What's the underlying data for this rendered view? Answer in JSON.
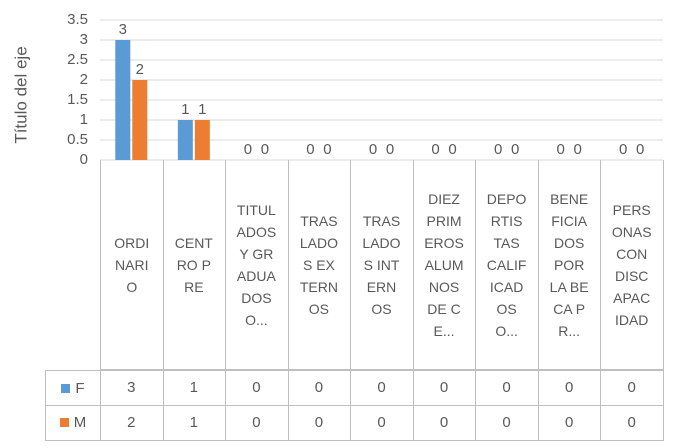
{
  "chart_data": {
    "type": "bar",
    "y_axis_label": "Título del eje",
    "categories": [
      "ORDINARIO",
      "CENTRO PRE",
      "TITULADOS Y GRADUADOS O...",
      "TRASLADOS EXTERNOS",
      "TRASLADOS INTERNOS",
      "DIEZ PRIMEROS ALUMNOS DE CE...",
      "DEPORTISTAS CALIFICADOS O...",
      "BENEFICIADOS POR LA BECA PR...",
      "PERSONAS CON DISCAPACIDAD"
    ],
    "series": [
      {
        "name": "F",
        "color": "#5b9bd5",
        "values": [
          3,
          1,
          0,
          0,
          0,
          0,
          0,
          0,
          0
        ]
      },
      {
        "name": "M",
        "color": "#ed7d31",
        "values": [
          2,
          1,
          0,
          0,
          0,
          0,
          0,
          0,
          0
        ]
      }
    ],
    "ylim": [
      0,
      3.5
    ],
    "yticks": [
      0,
      0.5,
      1,
      1.5,
      2,
      2.5,
      3,
      3.5
    ],
    "grid": true
  }
}
